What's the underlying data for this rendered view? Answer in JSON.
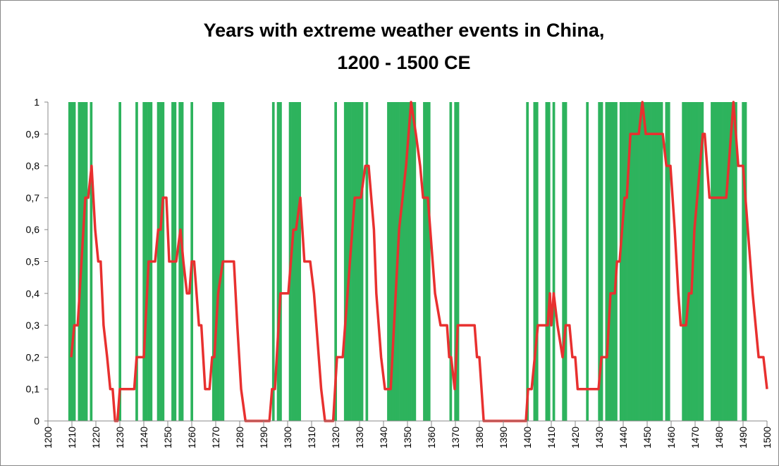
{
  "chart_data": {
    "type": "combo",
    "title": [
      "Years with extreme weather events in China,",
      "1200 - 1500 CE"
    ],
    "xlim": [
      1200,
      1500
    ],
    "xticks": [
      1200,
      1210,
      1220,
      1230,
      1240,
      1250,
      1260,
      1270,
      1280,
      1290,
      1300,
      1310,
      1320,
      1330,
      1340,
      1350,
      1360,
      1370,
      1380,
      1390,
      1400,
      1410,
      1420,
      1430,
      1440,
      1450,
      1460,
      1470,
      1480,
      1490,
      1500
    ],
    "ylim": [
      0,
      1
    ],
    "yticks": [
      0,
      {
        "value": 0.1,
        "label": "0,1"
      },
      {
        "value": 0.2,
        "label": "0,2"
      },
      {
        "value": 0.3,
        "label": "0,3"
      },
      {
        "value": 0.4,
        "label": "0,4"
      },
      {
        "value": 0.5,
        "label": "0,5"
      },
      {
        "value": 0.6,
        "label": "0,6"
      },
      {
        "value": 0.7,
        "label": "0,7"
      },
      {
        "value": 0.8,
        "label": "0,8"
      },
      {
        "value": 0.9,
        "label": "0,9"
      },
      1
    ],
    "series": [
      {
        "type": "bar",
        "color": "#2db35d",
        "x": [
          1209,
          1210,
          1211,
          1213,
          1214,
          1215,
          1216,
          1218,
          1230,
          1237,
          1240,
          1241,
          1242,
          1243,
          1246,
          1247,
          1248,
          1252,
          1253,
          1255,
          1256,
          1260,
          1269,
          1270,
          1271,
          1272,
          1273,
          1294,
          1296,
          1297,
          1301,
          1302,
          1303,
          1304,
          1305,
          1320,
          1324,
          1325,
          1326,
          1327,
          1328,
          1329,
          1330,
          1331,
          1333,
          1342,
          1343,
          1344,
          1345,
          1346,
          1347,
          1348,
          1349,
          1350,
          1351,
          1352,
          1353,
          1357,
          1358,
          1359,
          1368,
          1370,
          1371,
          1400,
          1403,
          1404,
          1408,
          1409,
          1411,
          1415,
          1416,
          1425,
          1430,
          1431,
          1433,
          1434,
          1435,
          1436,
          1437,
          1439,
          1440,
          1441,
          1442,
          1443,
          1444,
          1445,
          1446,
          1447,
          1448,
          1449,
          1450,
          1451,
          1452,
          1453,
          1454,
          1455,
          1456,
          1458,
          1459,
          1465,
          1466,
          1467,
          1468,
          1469,
          1470,
          1471,
          1472,
          1473,
          1477,
          1478,
          1479,
          1480,
          1481,
          1482,
          1483,
          1484,
          1485,
          1486,
          1487,
          1490,
          1491
        ],
        "values": [
          1,
          1,
          1,
          1,
          1,
          1,
          1,
          1,
          1,
          1,
          1,
          1,
          1,
          1,
          1,
          1,
          1,
          1,
          1,
          1,
          1,
          1,
          1,
          1,
          1,
          1,
          1,
          1,
          1,
          1,
          1,
          1,
          1,
          1,
          1,
          1,
          1,
          1,
          1,
          1,
          1,
          1,
          1,
          1,
          1,
          1,
          1,
          1,
          1,
          1,
          1,
          1,
          1,
          1,
          1,
          1,
          1,
          1,
          1,
          1,
          1,
          1,
          1,
          1,
          1,
          1,
          1,
          1,
          1,
          1,
          1,
          1,
          1,
          1,
          1,
          1,
          1,
          1,
          1,
          1,
          1,
          1,
          1,
          1,
          1,
          1,
          1,
          1,
          1,
          1,
          1,
          1,
          1,
          1,
          1,
          1,
          1,
          1,
          1,
          1,
          1,
          1,
          1,
          1,
          1,
          1,
          1,
          1,
          1,
          1,
          1,
          1,
          1,
          1,
          1,
          1,
          1,
          1,
          1,
          1,
          1
        ]
      },
      {
        "type": "line",
        "color": "#e8302f",
        "x": [
          1209.7,
          1211,
          1212.4,
          1214,
          1215.6,
          1216.8,
          1218.2,
          1219.7,
          1221,
          1222,
          1223.2,
          1224.7,
          1226,
          1227,
          1228,
          1229,
          1230,
          1236,
          1237,
          1240,
          1242,
          1244.7,
          1246,
          1247,
          1248,
          1249.4,
          1250.6,
          1253.5,
          1255.3,
          1256.5,
          1258,
          1259,
          1260,
          1261,
          1263,
          1264,
          1265.6,
          1267.4,
          1268.5,
          1269.4,
          1271,
          1273,
          1277.6,
          1279,
          1280.6,
          1282.4,
          1292.4,
          1293.5,
          1294.7,
          1297,
          1300.3,
          1302.4,
          1303.5,
          1305.3,
          1307,
          1309.4,
          1311,
          1313,
          1314,
          1315.6,
          1319,
          1320.6,
          1323,
          1326,
          1328,
          1330.6,
          1332.4,
          1333.8,
          1336,
          1337,
          1339,
          1340.6,
          1343,
          1346.5,
          1349.4,
          1351.5,
          1353.5,
          1355.3,
          1356.5,
          1358.5,
          1361.5,
          1363.8,
          1366.5,
          1367.4,
          1368.2,
          1369.7,
          1371,
          1378,
          1379,
          1380,
          1381.8,
          1399.4,
          1400.3,
          1401.8,
          1404.4,
          1408.5,
          1409.4,
          1410,
          1411,
          1412.6,
          1414.7,
          1416,
          1417.6,
          1418.8,
          1420,
          1421,
          1429.7,
          1430.9,
          1433.2,
          1434.7,
          1436.5,
          1437.4,
          1438.5,
          1440.6,
          1441.5,
          1443,
          1446.5,
          1448,
          1449.4,
          1456.5,
          1458,
          1459.7,
          1461.5,
          1463,
          1464,
          1466.2,
          1467.4,
          1468.5,
          1469.7,
          1473.2,
          1474,
          1476,
          1483,
          1486,
          1488,
          1490,
          1492,
          1494,
          1496.5,
          1498.5,
          1500
        ],
        "values": [
          0.2,
          0.3,
          0.3,
          0.5,
          0.7,
          0.7,
          0.8,
          0.6,
          0.5,
          0.5,
          0.3,
          0.2,
          0.1,
          0.1,
          0,
          0,
          0.1,
          0.1,
          0.2,
          0.2,
          0.5,
          0.5,
          0.6,
          0.6,
          0.7,
          0.7,
          0.5,
          0.5,
          0.6,
          0.5,
          0.4,
          0.4,
          0.5,
          0.5,
          0.3,
          0.3,
          0.1,
          0.1,
          0.2,
          0.2,
          0.4,
          0.5,
          0.5,
          0.3,
          0.1,
          0,
          0,
          0.1,
          0.1,
          0.4,
          0.4,
          0.6,
          0.6,
          0.7,
          0.5,
          0.5,
          0.4,
          0.2,
          0.1,
          0,
          0,
          0.2,
          0.2,
          0.5,
          0.7,
          0.7,
          0.8,
          0.8,
          0.6,
          0.4,
          0.2,
          0.1,
          0.1,
          0.6,
          0.8,
          1,
          0.9,
          0.8,
          0.7,
          0.7,
          0.4,
          0.3,
          0.3,
          0.2,
          0.2,
          0.1,
          0.3,
          0.3,
          0.2,
          0.2,
          0,
          0,
          0.1,
          0.1,
          0.3,
          0.3,
          0.4,
          0.3,
          0.4,
          0.3,
          0.2,
          0.3,
          0.3,
          0.2,
          0.2,
          0.1,
          0.1,
          0.2,
          0.2,
          0.4,
          0.4,
          0.5,
          0.5,
          0.7,
          0.7,
          0.9,
          0.9,
          1,
          0.9,
          0.9,
          0.8,
          0.8,
          0.6,
          0.4,
          0.3,
          0.3,
          0.4,
          0.4,
          0.6,
          0.9,
          0.9,
          0.7,
          0.7,
          1,
          0.8,
          0.8,
          0.6,
          0.4,
          0.2,
          0.2,
          0.1
        ]
      }
    ]
  }
}
